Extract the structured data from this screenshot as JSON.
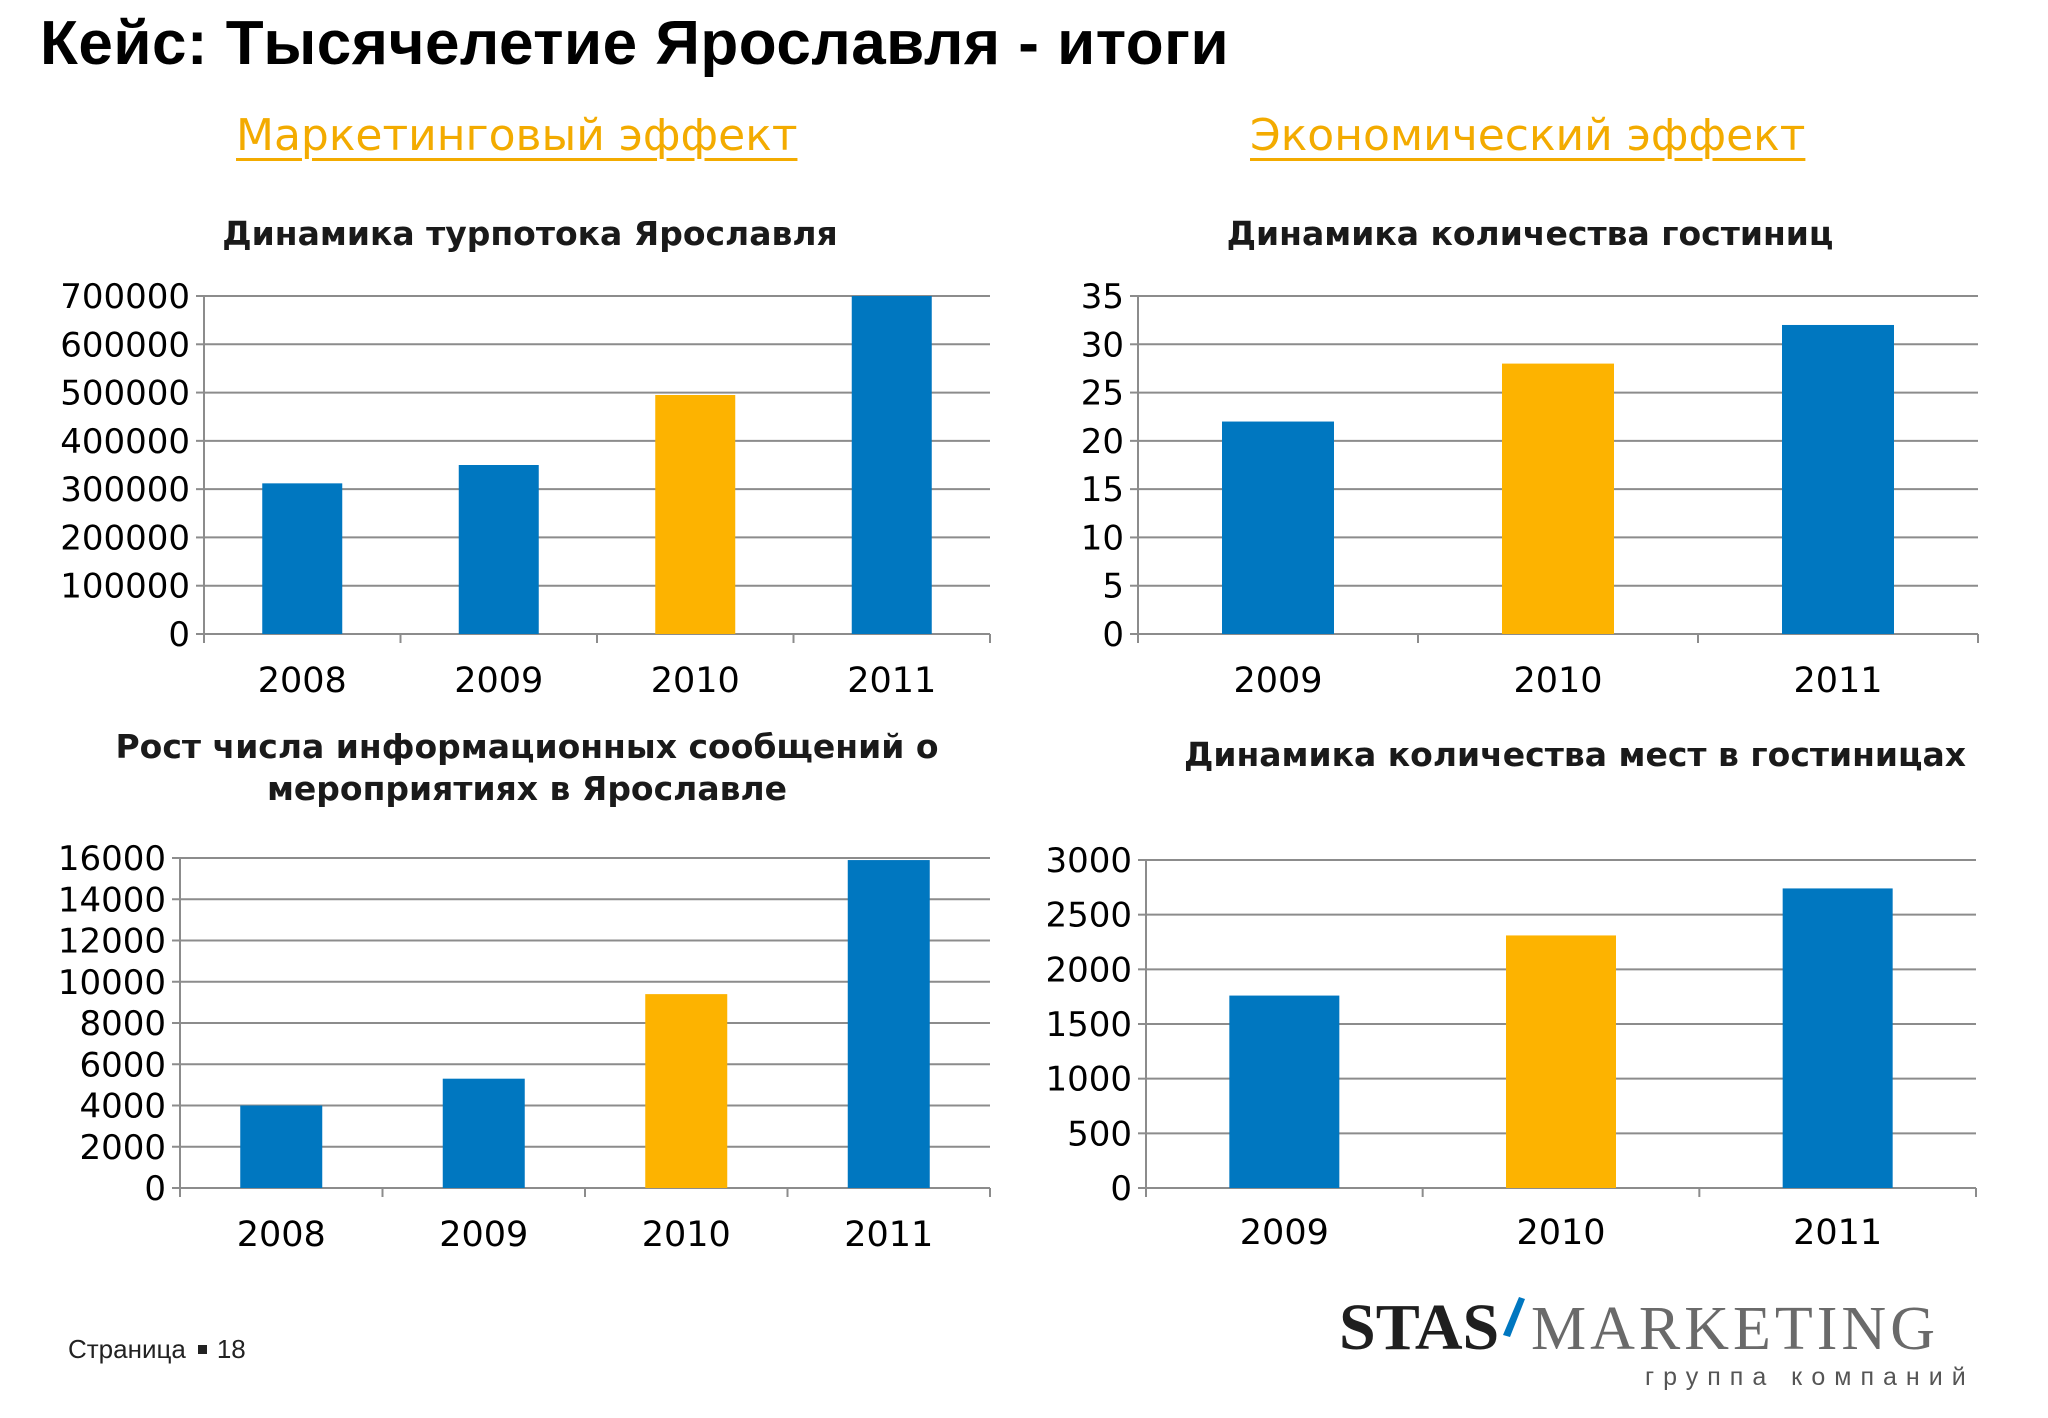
{
  "page": {
    "title": "Кейс: Тысячелетие Ярославля - итоги",
    "heading_left": "Маркетинговый эффект",
    "heading_right": "Экономический эффект",
    "footer_label": "Страница",
    "page_number": "18"
  },
  "logo": {
    "brand_left": "STAS",
    "brand_right": "MARKETING",
    "tagline": "группа компаний",
    "colors": {
      "text": "#1f1f1f",
      "slash": "#0077c0"
    }
  },
  "colors": {
    "blue": "#0077c0",
    "orange": "#fdb300",
    "heading": "#f3ab00"
  },
  "chart_data": [
    {
      "type": "bar",
      "title": [
        "Динамика турпотока Ярославля"
      ],
      "categories": [
        "2008",
        "2009",
        "2010",
        "2011"
      ],
      "values": [
        312000,
        350000,
        495000,
        700000
      ],
      "highlight_index": 2,
      "ylim": [
        0,
        700000
      ],
      "yticks": [
        0,
        100000,
        200000,
        300000,
        400000,
        500000,
        600000,
        700000
      ],
      "ytick_labels": [
        "0",
        "100000",
        "200000",
        "300000",
        "400000",
        "500000",
        "600000",
        "700000"
      ],
      "grid": true,
      "legend": "none"
    },
    {
      "type": "bar",
      "title": [
        "Динамика количества гостиниц"
      ],
      "categories": [
        "2009",
        "2010",
        "2011"
      ],
      "values": [
        22,
        28,
        32
      ],
      "highlight_index": 1,
      "ylim": [
        0,
        35
      ],
      "yticks": [
        0,
        5,
        10,
        15,
        20,
        25,
        30,
        35
      ],
      "ytick_labels": [
        "0",
        "5",
        "10",
        "15",
        "20",
        "25",
        "30",
        "35"
      ],
      "grid": true,
      "legend": "none"
    },
    {
      "type": "bar",
      "title": [
        "Рост числа информационных сообщений о",
        "мероприятиях в Ярославле"
      ],
      "categories": [
        "2008",
        "2009",
        "2010",
        "2011"
      ],
      "values": [
        4000,
        5300,
        9400,
        15900
      ],
      "highlight_index": 2,
      "ylim": [
        0,
        16000
      ],
      "yticks": [
        0,
        2000,
        4000,
        6000,
        8000,
        10000,
        12000,
        14000,
        16000
      ],
      "ytick_labels": [
        "0",
        "2000",
        "4000",
        "6000",
        "8000",
        "10000",
        "12000",
        "14000",
        "16000"
      ],
      "grid": true,
      "legend": "none"
    },
    {
      "type": "bar",
      "title": [
        "Динамика количества мест в гостиницах"
      ],
      "categories": [
        "2009",
        "2010",
        "2011"
      ],
      "values": [
        1760,
        2310,
        2740
      ],
      "highlight_index": 1,
      "ylim": [
        0,
        3000
      ],
      "yticks": [
        0,
        500,
        1000,
        1500,
        2000,
        2500,
        3000
      ],
      "ytick_labels": [
        "0",
        "500",
        "1000",
        "1500",
        "2000",
        "2500",
        "3000"
      ],
      "grid": true,
      "legend": "none"
    }
  ]
}
